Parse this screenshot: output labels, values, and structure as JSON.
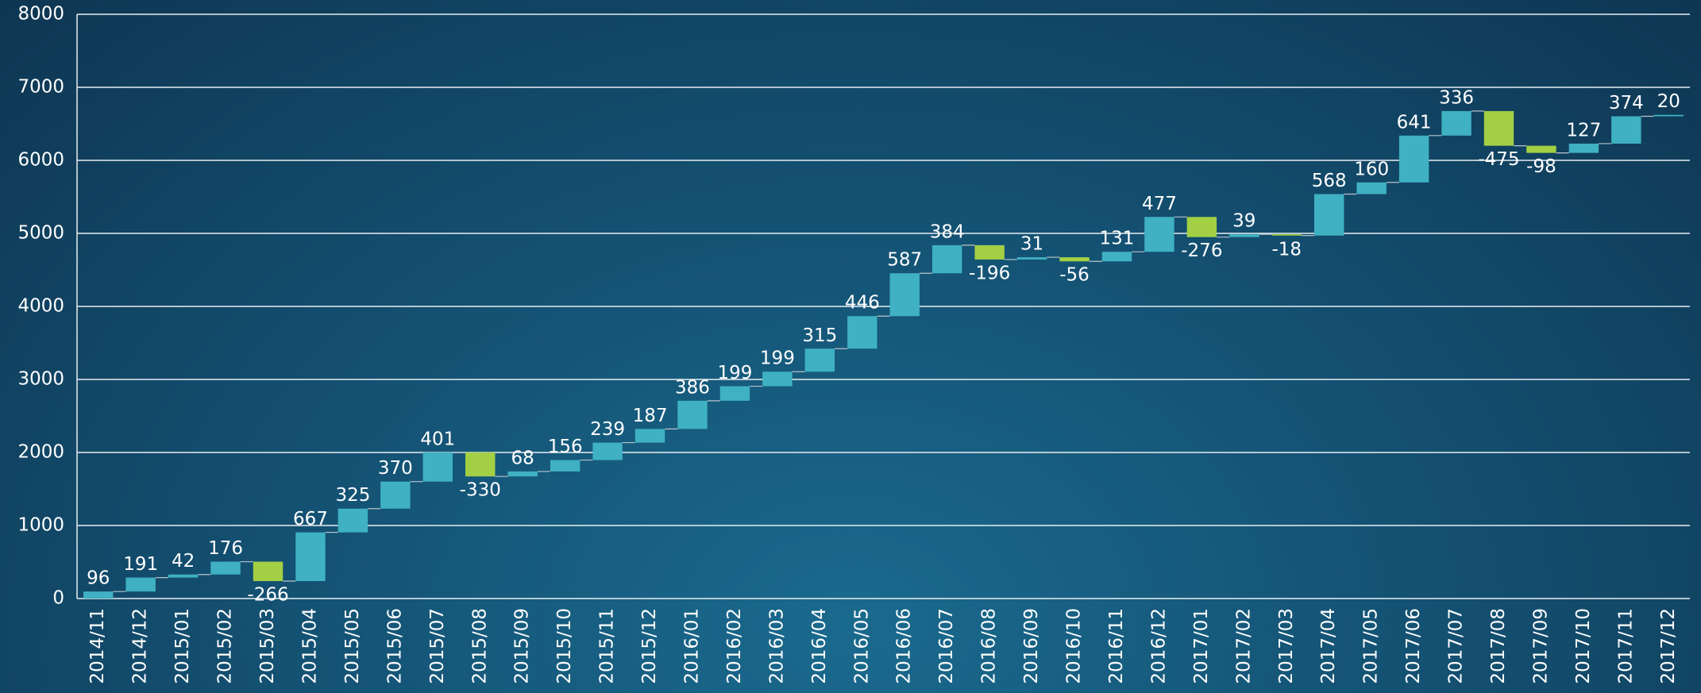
{
  "chart_data": {
    "type": "waterfall",
    "categories": [
      "2014/11",
      "2014/12",
      "2015/01",
      "2015/02",
      "2015/03",
      "2015/04",
      "2015/05",
      "2015/06",
      "2015/07",
      "2015/08",
      "2015/09",
      "2015/10",
      "2015/11",
      "2015/12",
      "2016/01",
      "2016/02",
      "2016/03",
      "2016/04",
      "2016/05",
      "2016/06",
      "2016/07",
      "2016/08",
      "2016/09",
      "2016/10",
      "2016/11",
      "2016/12",
      "2017/01",
      "2017/02",
      "2017/03",
      "2017/04",
      "2017/05",
      "2017/06",
      "2017/07",
      "2017/08",
      "2017/09",
      "2017/10",
      "2017/11",
      "2017/12"
    ],
    "values": [
      96,
      191,
      42,
      176,
      -266,
      667,
      325,
      370,
      401,
      -330,
      68,
      156,
      239,
      187,
      386,
      199,
      199,
      315,
      446,
      587,
      384,
      -196,
      31,
      -56,
      131,
      477,
      -276,
      39,
      -18,
      568,
      160,
      641,
      336,
      -475,
      -98,
      127,
      374,
      20
    ],
    "increase_color": "#3fb1c2",
    "decrease_color": "#a3cf45",
    "ylim": [
      0,
      8000
    ],
    "yticks": [
      0,
      1000,
      2000,
      3000,
      4000,
      5000,
      6000,
      7000,
      8000
    ],
    "grid": true
  }
}
